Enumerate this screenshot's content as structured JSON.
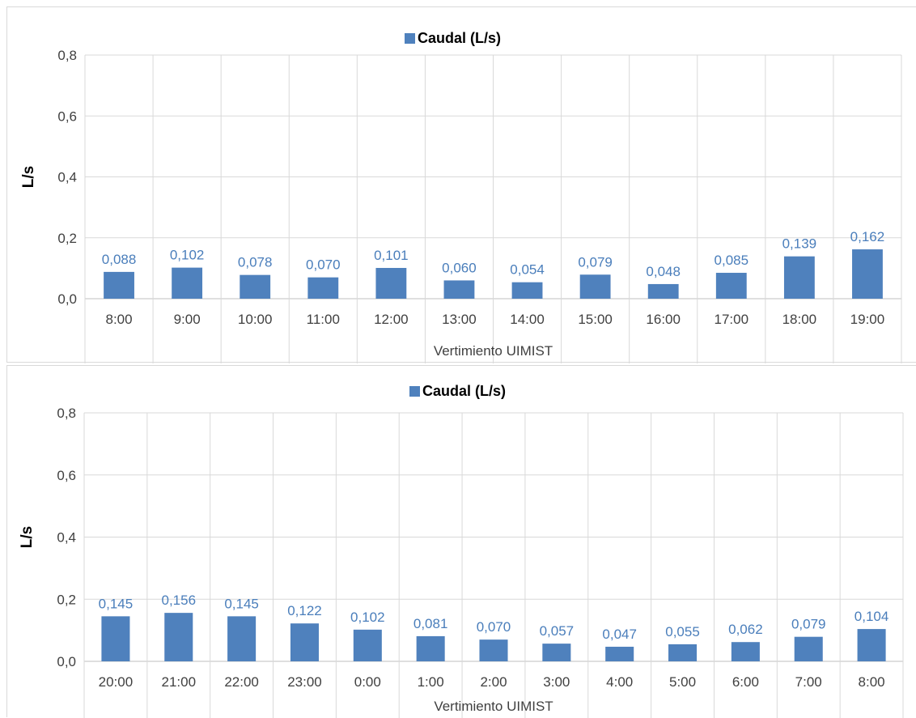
{
  "chart_data": [
    {
      "type": "bar",
      "legend": "Caudal (L/s)",
      "legend_position": "top",
      "xlabel": "Vertimiento UIMIST",
      "ylabel": "L/s",
      "ylim": [
        0,
        0.8
      ],
      "yticks": [
        "0,0",
        "0,2",
        "0,4",
        "0,6",
        "0,8"
      ],
      "grid": true,
      "color": "#4f81bd",
      "categories": [
        "8:00",
        "9:00",
        "10:00",
        "11:00",
        "12:00",
        "13:00",
        "14:00",
        "15:00",
        "16:00",
        "17:00",
        "18:00",
        "19:00"
      ],
      "series": [
        {
          "name": "Caudal (L/s)",
          "values": [
            0.088,
            0.102,
            0.078,
            0.07,
            0.101,
            0.06,
            0.054,
            0.079,
            0.048,
            0.085,
            0.139,
            0.162
          ],
          "labels": [
            "0,088",
            "0,102",
            "0,078",
            "0,070",
            "0,101",
            "0,060",
            "0,054",
            "0,079",
            "0,048",
            "0,085",
            "0,139",
            "0,162"
          ]
        }
      ]
    },
    {
      "type": "bar",
      "legend": "Caudal (L/s)",
      "legend_position": "top",
      "xlabel": "Vertimiento UIMIST",
      "ylabel": "L/s",
      "ylim": [
        0,
        0.8
      ],
      "yticks": [
        "0,0",
        "0,2",
        "0,4",
        "0,6",
        "0,8"
      ],
      "grid": true,
      "color": "#4f81bd",
      "categories": [
        "20:00",
        "21:00",
        "22:00",
        "23:00",
        "0:00",
        "1:00",
        "2:00",
        "3:00",
        "4:00",
        "5:00",
        "6:00",
        "7:00",
        "8:00"
      ],
      "series": [
        {
          "name": "Caudal (L/s)",
          "values": [
            0.145,
            0.156,
            0.145,
            0.122,
            0.102,
            0.081,
            0.07,
            0.057,
            0.047,
            0.055,
            0.062,
            0.079,
            0.104
          ],
          "labels": [
            "0,145",
            "0,156",
            "0,145",
            "0,122",
            "0,102",
            "0,081",
            "0,070",
            "0,057",
            "0,047",
            "0,055",
            "0,062",
            "0,079",
            "0,104"
          ]
        }
      ]
    }
  ]
}
